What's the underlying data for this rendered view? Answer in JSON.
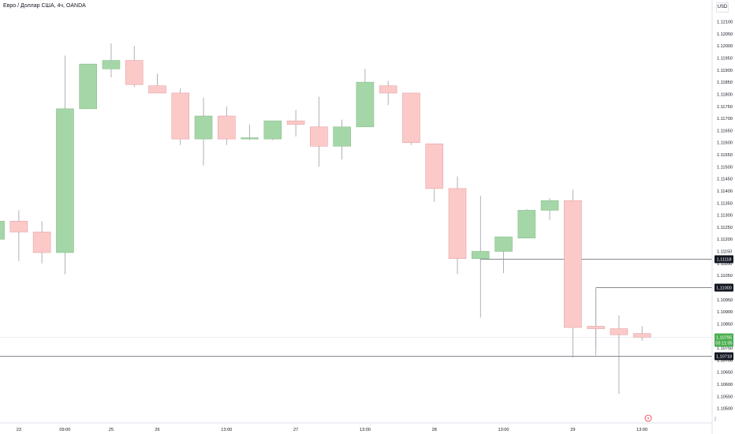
{
  "header": {
    "title": "Евро / Доллар США, 4ч, OANDA",
    "currency": "USD"
  },
  "colors": {
    "up_fill": "#a5d6a7",
    "up_border": "#8bbf8d",
    "down_fill": "#fcc9c9",
    "down_border": "#e5a3a3",
    "wick": "#9a9ea8",
    "level_line": "#5d606b",
    "label_bg": "#131722",
    "price_label_bg": "#4caf50"
  },
  "chart_data": {
    "type": "candlestick",
    "ylim": [
      1.1044,
      1.1219
    ],
    "y_ticks": [
      "1.12100",
      "1.12050",
      "1.12000",
      "1.11950",
      "1.11900",
      "1.11850",
      "1.11800",
      "1.11750",
      "1.11700",
      "1.11650",
      "1.11600",
      "1.11550",
      "1.11500",
      "1.11450",
      "1.11400",
      "1.11350",
      "1.11300",
      "1.11250",
      "1.11200",
      "1.11150",
      "1.11100",
      "1.11050",
      "1.11000",
      "1.10950",
      "1.10900",
      "1.10850",
      "1.10800",
      "1.10750",
      "1.10700",
      "1.10650",
      "1.10600",
      "1.10550",
      "1.10500",
      "1.10450"
    ],
    "x_ticks": [
      {
        "label": "23",
        "index": 1
      },
      {
        "label": "09:00",
        "index": 3
      },
      {
        "label": "25",
        "index": 5
      },
      {
        "label": "26",
        "index": 7
      },
      {
        "label": "13:00",
        "index": 10
      },
      {
        "label": "27",
        "index": 13
      },
      {
        "label": "13:00",
        "index": 16
      },
      {
        "label": "28",
        "index": 19
      },
      {
        "label": "13:00",
        "index": 22
      },
      {
        "label": "29",
        "index": 25
      },
      {
        "label": "13:00",
        "index": 28
      }
    ],
    "candles": [
      {
        "o": 1.112,
        "h": 1.1128,
        "l": 1.112,
        "c": 1.11275
      },
      {
        "o": 1.11275,
        "h": 1.1132,
        "l": 1.1111,
        "c": 1.1123
      },
      {
        "o": 1.1123,
        "h": 1.11275,
        "l": 1.111,
        "c": 1.11145
      },
      {
        "o": 1.11145,
        "h": 1.1196,
        "l": 1.11055,
        "c": 1.1174
      },
      {
        "o": 1.1174,
        "h": 1.11925,
        "l": 1.1174,
        "c": 1.11925
      },
      {
        "o": 1.11905,
        "h": 1.1201,
        "l": 1.1187,
        "c": 1.1194
      },
      {
        "o": 1.1194,
        "h": 1.12,
        "l": 1.1183,
        "c": 1.1184
      },
      {
        "o": 1.11835,
        "h": 1.11885,
        "l": 1.11805,
        "c": 1.11805
      },
      {
        "o": 1.11805,
        "h": 1.11825,
        "l": 1.1159,
        "c": 1.11615
      },
      {
        "o": 1.11615,
        "h": 1.11785,
        "l": 1.11505,
        "c": 1.1171
      },
      {
        "o": 1.1171,
        "h": 1.1175,
        "l": 1.1159,
        "c": 1.11615
      },
      {
        "o": 1.11615,
        "h": 1.11675,
        "l": 1.1161,
        "c": 1.1162
      },
      {
        "o": 1.11615,
        "h": 1.1169,
        "l": 1.1161,
        "c": 1.1169
      },
      {
        "o": 1.1169,
        "h": 1.11735,
        "l": 1.11625,
        "c": 1.11675
      },
      {
        "o": 1.11665,
        "h": 1.1179,
        "l": 1.115,
        "c": 1.11585
      },
      {
        "o": 1.11585,
        "h": 1.11695,
        "l": 1.1153,
        "c": 1.11665
      },
      {
        "o": 1.11665,
        "h": 1.11905,
        "l": 1.11665,
        "c": 1.1185
      },
      {
        "o": 1.11835,
        "h": 1.11855,
        "l": 1.11755,
        "c": 1.11805
      },
      {
        "o": 1.11805,
        "h": 1.11805,
        "l": 1.1159,
        "c": 1.116
      },
      {
        "o": 1.11595,
        "h": 1.11595,
        "l": 1.11355,
        "c": 1.1141
      },
      {
        "o": 1.1141,
        "h": 1.1146,
        "l": 1.11055,
        "c": 1.1112
      },
      {
        "o": 1.1112,
        "h": 1.1138,
        "l": 1.11115,
        "c": 1.1115
      },
      {
        "o": 1.1115,
        "h": 1.1121,
        "l": 1.1106,
        "c": 1.1121
      },
      {
        "o": 1.11205,
        "h": 1.11325,
        "l": 1.11205,
        "c": 1.1132
      },
      {
        "o": 1.1132,
        "h": 1.1137,
        "l": 1.1128,
        "c": 1.1136
      },
      {
        "o": 1.1136,
        "h": 1.11405,
        "l": 1.1071,
        "c": 1.10835
      },
      {
        "o": 1.1084,
        "h": 1.10995,
        "l": 1.1072,
        "c": 1.1083
      },
      {
        "o": 1.1083,
        "h": 1.10885,
        "l": 1.1056,
        "c": 1.10805
      },
      {
        "o": 1.1081,
        "h": 1.1084,
        "l": 1.1078,
        "c": 1.10795
      }
    ],
    "levels": [
      {
        "price": 1.11118,
        "label": "1,11118",
        "start_index": 21,
        "style": "solid"
      },
      {
        "price": 1.11,
        "label": "1,11000",
        "start_index": 26,
        "style": "solid"
      },
      {
        "price": 1.10718,
        "label": "1,10718",
        "start_index": 0,
        "style": "solid"
      }
    ],
    "current_price": {
      "price": 1.10795,
      "label": "1,10795",
      "countdown": "03:11:05"
    }
  }
}
